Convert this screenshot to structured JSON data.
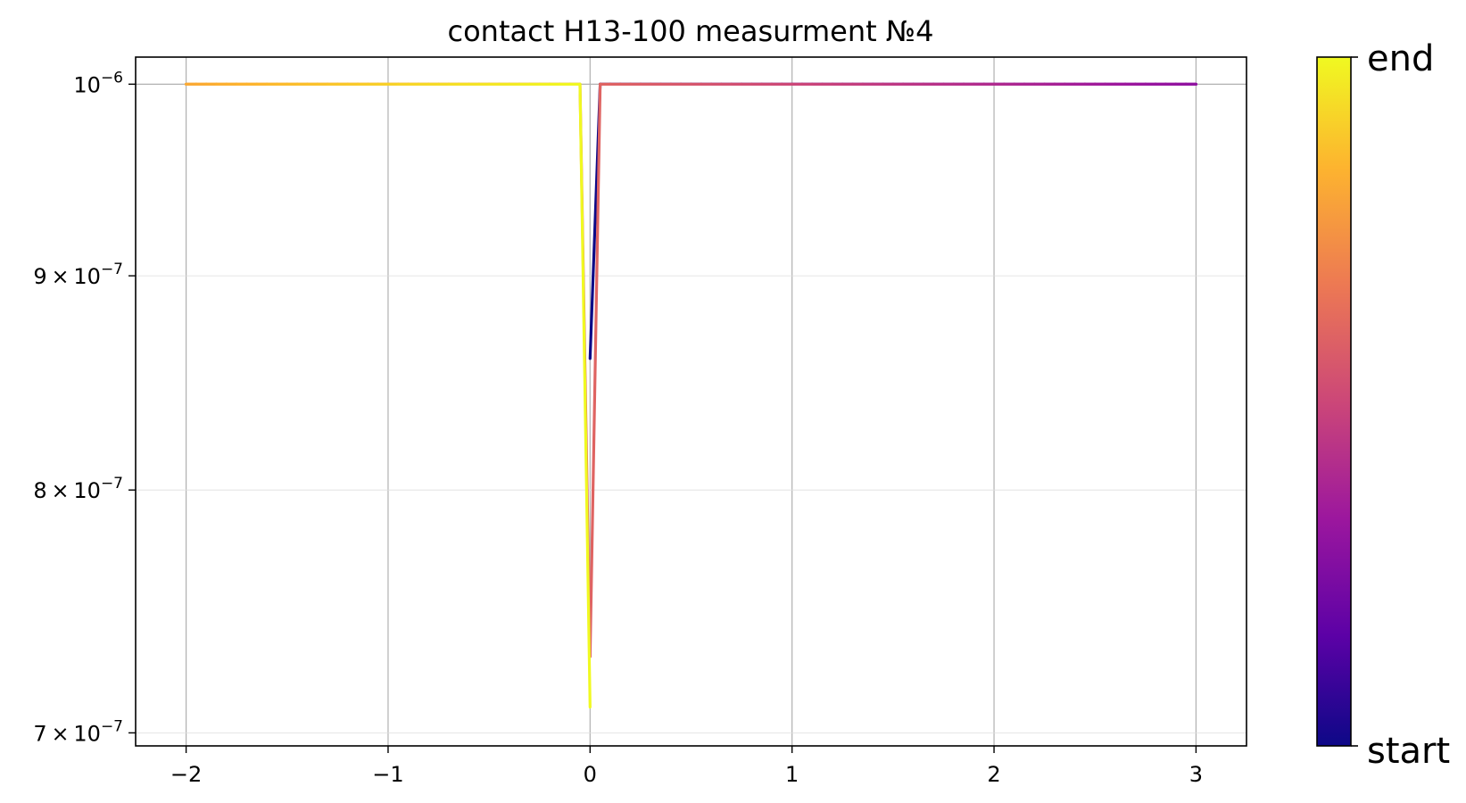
{
  "chart_data": {
    "type": "line",
    "title": "contact H13-100 measurment №4",
    "xlabel": "",
    "ylabel": "",
    "xlim": [
      -2.25,
      3.25
    ],
    "ylim": [
      6.95e-07,
      1.015e-06
    ],
    "y_scale": "log",
    "grid": true,
    "x_ticks": [
      {
        "value": -2,
        "label": "−2"
      },
      {
        "value": -1,
        "label": "−1"
      },
      {
        "value": 0,
        "label": "0"
      },
      {
        "value": 1,
        "label": "1"
      },
      {
        "value": 2,
        "label": "2"
      },
      {
        "value": 3,
        "label": "3"
      }
    ],
    "y_ticks": [
      {
        "value": 1e-06,
        "mant": "",
        "base": "10",
        "exp": "−6"
      },
      {
        "value": 9e-07,
        "mant": "9 × 10",
        "base": "",
        "exp": "−7"
      },
      {
        "value": 8e-07,
        "mant": "8 × 10",
        "base": "",
        "exp": "−7"
      },
      {
        "value": 7e-07,
        "mant": "7 × 10",
        "base": "",
        "exp": "−7"
      }
    ],
    "colorbar": {
      "colormap": "plasma",
      "top_label": "end",
      "bottom_label": "start",
      "colors": [
        "#0d0887",
        "#5c01a6",
        "#9c179e",
        "#cc4778",
        "#ed7953",
        "#fdb42f",
        "#f0f921"
      ]
    },
    "sweep": {
      "description_of_path": "voltage sweep 0 → 3 → 0 → -2 → 0",
      "points": [
        {
          "x": 0.0,
          "y": 8.6e-07
        },
        {
          "x": 0.05,
          "y": 1e-06
        },
        {
          "x": 1.0,
          "y": 1e-06
        },
        {
          "x": 2.0,
          "y": 1e-06
        },
        {
          "x": 3.0,
          "y": 1e-06
        },
        {
          "x": 2.0,
          "y": 1e-06
        },
        {
          "x": 1.0,
          "y": 1e-06
        },
        {
          "x": 0.05,
          "y": 1e-06
        },
        {
          "x": 0.0,
          "y": 7.3e-07
        },
        {
          "x": -0.05,
          "y": 1e-06
        },
        {
          "x": -1.0,
          "y": 1e-06
        },
        {
          "x": -2.0,
          "y": 1e-06
        },
        {
          "x": -1.0,
          "y": 1e-06
        },
        {
          "x": -0.05,
          "y": 1e-06
        },
        {
          "x": 0.0,
          "y": 7.1e-07
        }
      ]
    }
  }
}
